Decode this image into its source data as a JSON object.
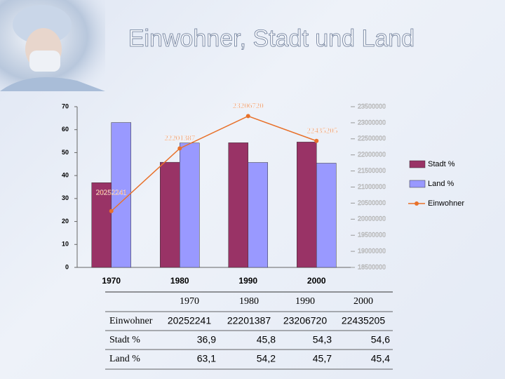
{
  "chart_data": {
    "type": "bar-line",
    "title": "Einwohner, Stadt und Land",
    "categories": [
      "1970",
      "1980",
      "1990",
      "2000"
    ],
    "series": [
      {
        "name": "Stadt %",
        "color": "#993366",
        "values": [
          36.9,
          45.8,
          54.3,
          54.6
        ]
      },
      {
        "name": "Land %",
        "color": "#9999ff",
        "values": [
          63.1,
          54.2,
          45.7,
          45.4
        ]
      },
      {
        "name": "Einwohner",
        "color": "#e8712a",
        "axis": "y2",
        "values": [
          20252241,
          22201387,
          23206720,
          22435205
        ]
      }
    ],
    "ylim": [
      0,
      70
    ],
    "yticks": [
      0,
      10,
      20,
      30,
      40,
      50,
      60,
      70
    ],
    "y2lim": [
      18500000,
      23500000
    ],
    "y2ticks": [
      18500000,
      19000000,
      19500000,
      20000000,
      20500000,
      21000000,
      21500000,
      22000000,
      22500000,
      23000000,
      23500000
    ]
  },
  "table": {
    "columns": [
      "1970",
      "1980",
      "1990",
      "2000"
    ],
    "rows": [
      {
        "label": "Einwohner",
        "cells": [
          "20252241",
          "22201387",
          "23206720",
          "22435205"
        ]
      },
      {
        "label": "Stadt %",
        "cells": [
          "36,9",
          "45,8",
          "54,3",
          "54,6"
        ]
      },
      {
        "label": "Land %",
        "cells": [
          "63,1",
          "54,2",
          "45,7",
          "45,4"
        ]
      }
    ]
  }
}
